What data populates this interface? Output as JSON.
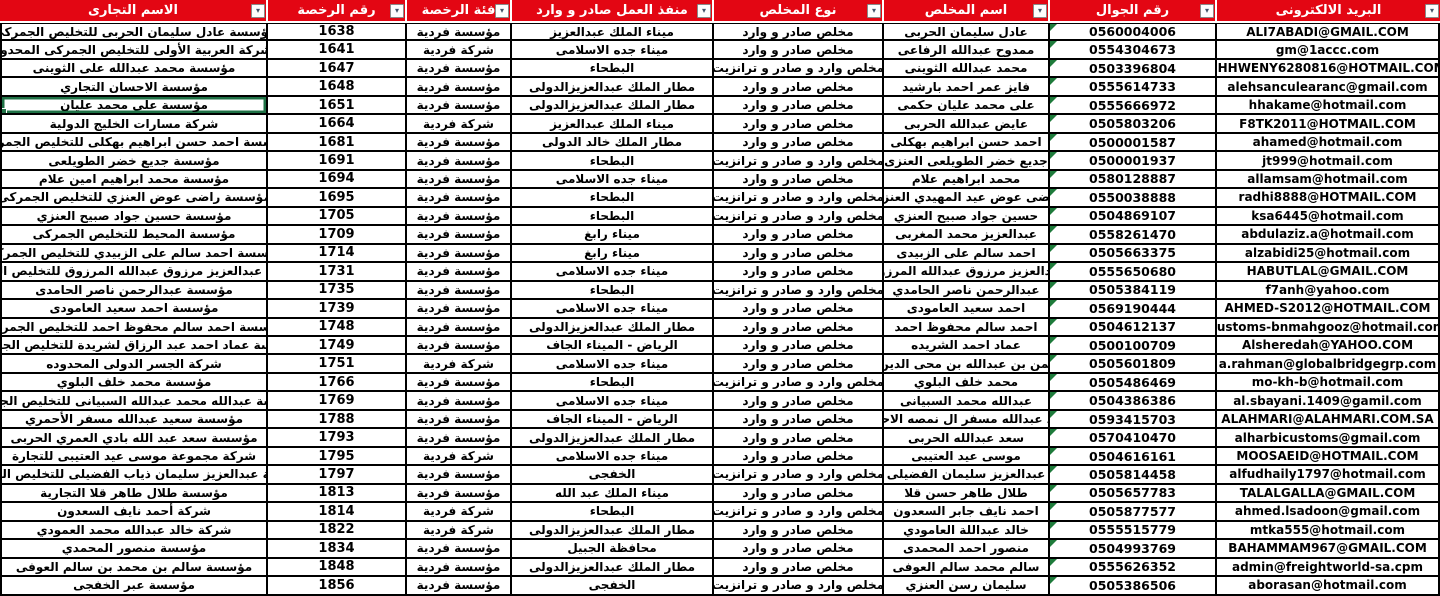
{
  "app": {
    "type": "spreadsheet-table",
    "language": "arabic",
    "direction": "rtl"
  },
  "colors": {
    "header_bg": "#E30613",
    "header_text": "#FFFFFF",
    "grid": "#000000",
    "selection_green": "#1E7145",
    "error_triangle_green": "#1E7B3B"
  },
  "icons": {
    "filter_arrow": "▾"
  },
  "indicators": {
    "mobile_error_triangle": "green-triangle-top-left"
  },
  "table": {
    "selected_cell": {
      "row": 5,
      "column": "trade_name"
    },
    "columns": [
      {
        "key": "trade_name",
        "label": "الاسم التجارى"
      },
      {
        "key": "license_no",
        "label": "رقم الرخصة"
      },
      {
        "key": "license_category",
        "label": "فئة الرخصة"
      },
      {
        "key": "work_port",
        "label": "منفذ العمل صادر و وارد"
      },
      {
        "key": "broker_type",
        "label": "نوع المخلص"
      },
      {
        "key": "broker_name",
        "label": "اسم المخلص"
      },
      {
        "key": "mobile",
        "label": "رقم الجوال"
      },
      {
        "key": "email",
        "label": "البريد الالكترونى"
      }
    ],
    "rows": [
      {
        "trade_name": "مؤسسة عادل سليمان الحربى للتخليص الجمركى",
        "license_no": "1638",
        "license_category": "مؤسسة فردية",
        "work_port": "ميناء الملك عبدالعزيز",
        "broker_type": "مخلص صادر و وارد",
        "broker_name": "عادل سليمان الحربى",
        "mobile": "0560004006",
        "email": "ALI7ABADI@GMAIL.COM"
      },
      {
        "trade_name": "الشركة العربية الأولى للتخليص الجمركى المحدودة",
        "license_no": "1641",
        "license_category": "شركة فردية",
        "work_port": "ميناء جده الاسلامى",
        "broker_type": "مخلص صادر و وارد",
        "broker_name": "ممدوح عبدالله الرفاعى",
        "mobile": "0554304673",
        "email": "gm@1accc.com"
      },
      {
        "trade_name": "مؤسسة محمد عبدالله على الثوينى",
        "license_no": "1647",
        "license_category": "مؤسسة فردية",
        "work_port": "البطحاء",
        "broker_type": "مخلص وارد و صادر و ترانزيت",
        "broker_name": "محمد عبدالله الثوينى",
        "mobile": "0503396804",
        "email": "EHHWENY6280816@HOTMAIL.COM"
      },
      {
        "trade_name": "مؤسسة الاحسان التجاري",
        "license_no": "1648",
        "license_category": "مؤسسة فردية",
        "work_port": "مطار الملك عبدالعزيزالدولى",
        "broker_type": "مخلص صادر و وارد",
        "broker_name": "فايز عمر احمد بارشيد",
        "mobile": "0555614733",
        "email": "alehsanculearanc@gmail.com"
      },
      {
        "trade_name": "مؤسسة على محمد عليان",
        "license_no": "1651",
        "license_category": "مؤسسة فردية",
        "work_port": "مطار الملك عبدالعزيزالدولى",
        "broker_type": "مخلص صادر و وارد",
        "broker_name": "على محمد عليان حكمى",
        "mobile": "0555666972",
        "email": "hhakame@hotmail.com"
      },
      {
        "trade_name": "شركة مسارات الخليج الدولية",
        "license_no": "1664",
        "license_category": "شركة فردية",
        "work_port": "ميناء الملك عبدالعزيز",
        "broker_type": "مخلص صادر و وارد",
        "broker_name": "عايض عبدالله الحربى",
        "mobile": "0505803206",
        "email": "F8TK2011@HOTMAIL.COM"
      },
      {
        "trade_name": "مؤسسة احمد حسن ابراهيم بهكلى للتخليص الجمركى",
        "license_no": "1681",
        "license_category": "مؤسسة فردية",
        "work_port": "مطار الملك خالد الدولى",
        "broker_type": "مخلص صادر و وارد",
        "broker_name": "احمد حسن ابراهيم بهكلى",
        "mobile": "0500001587",
        "email": "ahamed@hotmail.com"
      },
      {
        "trade_name": "مؤسسة جديع خضر الطويلعى",
        "license_no": "1691",
        "license_category": "مؤسسة فردية",
        "work_port": "البطحاء",
        "broker_type": "مخلص وارد و صادر و ترانزيت",
        "broker_name": "جديع خضر الطويلعى العنزى",
        "mobile": "0500001937",
        "email": "jt999@hotmail.com"
      },
      {
        "trade_name": "مؤسسة محمد ابراهيم امين علام",
        "license_no": "1694",
        "license_category": "مؤسسة فردية",
        "work_port": "ميناء جده الاسلامى",
        "broker_type": "مخلص صادر و وارد",
        "broker_name": "محمد ابراهيم علام",
        "mobile": "0580128887",
        "email": "allamsam@hotmail.com"
      },
      {
        "trade_name": "مؤسسة راضى عوض العنزي للتخليص الجمركى",
        "license_no": "1695",
        "license_category": "مؤسسة فردية",
        "work_port": "البطحاء",
        "broker_type": "مخلص وارد و صادر و ترانزيت",
        "broker_name": "راضى عوض عيد المهيدي العنزي",
        "mobile": "0550038888",
        "email": "radhi8888@HOTMAIL.COM"
      },
      {
        "trade_name": "مؤسسة حسين جواد صبيح العنزي",
        "license_no": "1705",
        "license_category": "مؤسسة فردية",
        "work_port": "البطحاء",
        "broker_type": "مخلص وارد و صادر و ترانزيت",
        "broker_name": "حسين جواد صبيح العنزي",
        "mobile": "0504869107",
        "email": "ksa6445@hotmail.com"
      },
      {
        "trade_name": "مؤسسة المحيط للتخليص الجمركى",
        "license_no": "1709",
        "license_category": "مؤسسة فردية",
        "work_port": "ميناء رابغ",
        "broker_type": "مخلص صادر و وارد",
        "broker_name": "عبدالعزيز محمد المغربى",
        "mobile": "0558261470",
        "email": "abdulaziz.a@hotmail.com"
      },
      {
        "trade_name": "مؤسسة احمد سالم على الزبيدي للتخليص الجمركى",
        "license_no": "1714",
        "license_category": "مؤسسة فردية",
        "work_port": "ميناء رابغ",
        "broker_type": "مخلص صادر و وارد",
        "broker_name": "احمد سالم على الزبيدى",
        "mobile": "0505663375",
        "email": "alzabidi25@hotmail.com"
      },
      {
        "trade_name": "مؤسسة عبدالعزيز مرزوق عبدالله المرزوق للتخليص الجمركى",
        "license_no": "1731",
        "license_category": "مؤسسة فردية",
        "work_port": "ميناء جده الاسلامى",
        "broker_type": "مخلص صادر و وارد",
        "broker_name": "عبدالعزيز مرزوق عبدالله المرزوق",
        "mobile": "0555650680",
        "email": "HABUTLAL@GMAIL.COM"
      },
      {
        "trade_name": "مؤسسة عبدالرحمن ناصر الحامدى",
        "license_no": "1735",
        "license_category": "مؤسسة فردية",
        "work_port": "البطحاء",
        "broker_type": "مخلص وارد و صادر و ترانزيت",
        "broker_name": "عبدالرحمن ناصر الحامدي",
        "mobile": "0505384119",
        "email": "f7anh@yahoo.com"
      },
      {
        "trade_name": "مؤسسة احمد سعيد العامودى",
        "license_no": "1739",
        "license_category": "مؤسسة فردية",
        "work_port": "ميناء جده الاسلامى",
        "broker_type": "مخلص صادر و وارد",
        "broker_name": "احمد سعيد العامودى",
        "mobile": "0569190444",
        "email": "AHMED-S2012@HOTMAIL.COM"
      },
      {
        "trade_name": "مؤسسة احمد سالم محفوظ احمد للتخليص الجمركى",
        "license_no": "1748",
        "license_category": "مؤسسة فردية",
        "work_port": "مطار الملك عبدالعزيزالدولى",
        "broker_type": "مخلص صادر و وارد",
        "broker_name": "احمد سالم محفوظ احمد",
        "mobile": "0504612137",
        "email": "customs-bnmahgooz@hotmail.com"
      },
      {
        "trade_name": "مؤسسة عماد احمد عبد الرزاق لشريدة للتخليص الجمركى",
        "license_no": "1749",
        "license_category": "مؤسسة فردية",
        "work_port": "الرياض - الميناء الجاف",
        "broker_type": "مخلص صادر و وارد",
        "broker_name": "عماد احمد الشريده",
        "mobile": "0500100709",
        "email": "Alsheredah@YAHOO.COM"
      },
      {
        "trade_name": "شركة الجسر الدولى المحدوده",
        "license_no": "1751",
        "license_category": "شركة فردية",
        "work_port": "ميناء جده الاسلامى",
        "broker_type": "مخلص صادر و وارد",
        "broker_name": "لرحمن بن عبدالله بن محى الدين يو",
        "mobile": "0505601809",
        "email": "a.rahman@globalbridgegrp.com"
      },
      {
        "trade_name": "مؤسسة محمد خلف البلوي",
        "license_no": "1766",
        "license_category": "مؤسسة فردية",
        "work_port": "البطحاء",
        "broker_type": "مخلص وارد و صادر و ترانزيت",
        "broker_name": "محمد خلف البلوي",
        "mobile": "0505486469",
        "email": "mo-kh-b@hotmail.com"
      },
      {
        "trade_name": "مؤسسة عبدالله محمد عبدالله السبيانى للتخليص الجمركى",
        "license_no": "1769",
        "license_category": "مؤسسة فردية",
        "work_port": "ميناء جده الاسلامى",
        "broker_type": "مخلص صادر و وارد",
        "broker_name": "عبدالله محمد السبيانى",
        "mobile": "0504386386",
        "email": "al.sbayani.1409@gamil.com"
      },
      {
        "trade_name": "مؤسسة سعيد عبدالله مسفر الأحمري",
        "license_no": "1788",
        "license_category": "مؤسسة فردية",
        "work_port": "الرياض - الميناء الجاف",
        "broker_type": "مخلص صادر و وارد",
        "broker_name": "سعيد عبدالله مسفر ال نمصه الاحمرى",
        "mobile": "0593415703",
        "email": "ALAHMARI@ALAHMARI.COM.SA"
      },
      {
        "trade_name": "مؤسسة سعد عبد الله بادي العمري الحربى",
        "license_no": "1793",
        "license_category": "مؤسسة فردية",
        "work_port": "مطار الملك عبدالعزيزالدولى",
        "broker_type": "مخلص صادر و وارد",
        "broker_name": "سعد عبدالله الحربى",
        "mobile": "0570410470",
        "email": "alharbicustoms@gmail.com"
      },
      {
        "trade_name": "شركة مجموعة موسى عيد العتيبى للتجارة",
        "license_no": "1795",
        "license_category": "شركة فردية",
        "work_port": "ميناء جده الاسلامى",
        "broker_type": "مخلص صادر و وارد",
        "broker_name": "موسى عيد العتيبى",
        "mobile": "0504616161",
        "email": "MOOSAEID@HOTMAIL.COM"
      },
      {
        "trade_name": "مؤسسة عبدالعزيز سليمان ذياب الفضيلى للتخليص الجمركى",
        "license_no": "1797",
        "license_category": "مؤسسة فردية",
        "work_port": "الخفجى",
        "broker_type": "مخلص وارد و صادر و ترانزيت",
        "broker_name": "عبدالعزيز سليمان الفضيلى",
        "mobile": "0505814458",
        "email": "alfudhaily1797@hotmail.com"
      },
      {
        "trade_name": "مؤسسة طلال طاهر قلا التجارية",
        "license_no": "1813",
        "license_category": "مؤسسة فردية",
        "work_port": "ميناء الملك عبد الله",
        "broker_type": "مخلص صادر و وارد",
        "broker_name": "طلال طاهر حسن قلا",
        "mobile": "0505657783",
        "email": "TALALGALLA@GMAIL.COM"
      },
      {
        "trade_name": "شركة أحمد نايف السعدون",
        "license_no": "1814",
        "license_category": "شركة فردية",
        "work_port": "البطحاء",
        "broker_type": "مخلص وارد و صادر و ترانزيت",
        "broker_name": "احمد نايف جابر السعدون",
        "mobile": "0505877577",
        "email": "ahmed.lsadoon@gmail.com"
      },
      {
        "trade_name": "شركة خالد عبدالله محمد العمودي",
        "license_no": "1822",
        "license_category": "شركة فردية",
        "work_port": "مطار الملك عبدالعزيزالدولى",
        "broker_type": "مخلص صادر و وارد",
        "broker_name": "خالد عبداللة العامودي",
        "mobile": "0555515779",
        "email": "mtka555@hotmail.com"
      },
      {
        "trade_name": "مؤسسة منصور المحمدي",
        "license_no": "1834",
        "license_category": "مؤسسة فردية",
        "work_port": "محافظة الجبيل",
        "broker_type": "مخلص صادر و وارد",
        "broker_name": "منصور احمد المحمدى",
        "mobile": "0504993769",
        "email": "BAHAMMAM967@GMAIL.COM"
      },
      {
        "trade_name": "مؤسسة سالم بن محمد بن سالم العوفى",
        "license_no": "1848",
        "license_category": "مؤسسة فردية",
        "work_port": "مطار الملك عبدالعزيزالدولى",
        "broker_type": "مخلص صادر و وارد",
        "broker_name": "سالم محمد سالم العوفى",
        "mobile": "0555626352",
        "email": "admin@freightworld-sa.cpm"
      },
      {
        "trade_name": "مؤسسة عبر الخفجى",
        "license_no": "1856",
        "license_category": "مؤسسة فردية",
        "work_port": "الخفجى",
        "broker_type": "مخلص وارد و صادر و ترانزيت",
        "broker_name": "سليمان رسن العنزي",
        "mobile": "0505386506",
        "email": "aborasan@hotmail.com"
      }
    ]
  }
}
